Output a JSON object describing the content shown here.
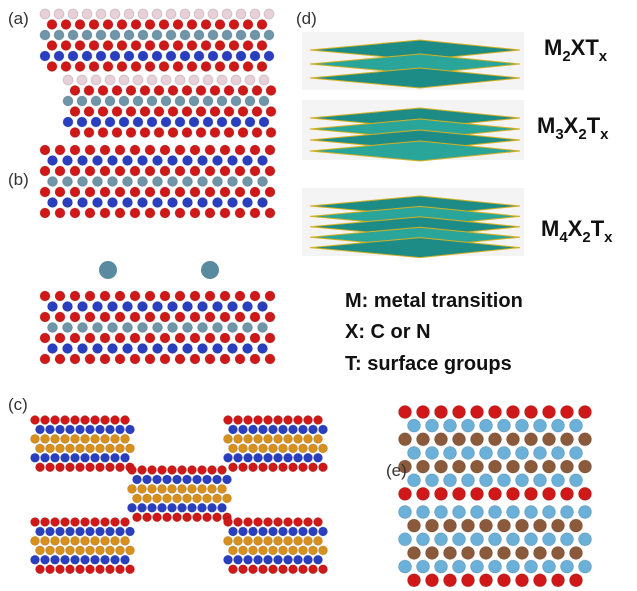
{
  "panel_labels": [
    "(a)",
    "(b)",
    "(c)",
    "(d)",
    "(e)"
  ],
  "formulas": [
    [
      {
        "text": "M"
      },
      {
        "sub": "2"
      },
      {
        "text": "XT"
      },
      {
        "sub": "x"
      }
    ],
    [
      {
        "text": "M"
      },
      {
        "sub": "3"
      },
      {
        "text": "X"
      },
      {
        "sub": "2"
      },
      {
        "text": "T"
      },
      {
        "sub": "x"
      }
    ],
    [
      {
        "text": "M"
      },
      {
        "sub": "4"
      },
      {
        "text": "X"
      },
      {
        "sub": "2"
      },
      {
        "text": "T"
      },
      {
        "sub": "x"
      }
    ]
  ],
  "legend": [
    "M: metal transition",
    "X: C or N",
    "T: surface groups"
  ]
}
